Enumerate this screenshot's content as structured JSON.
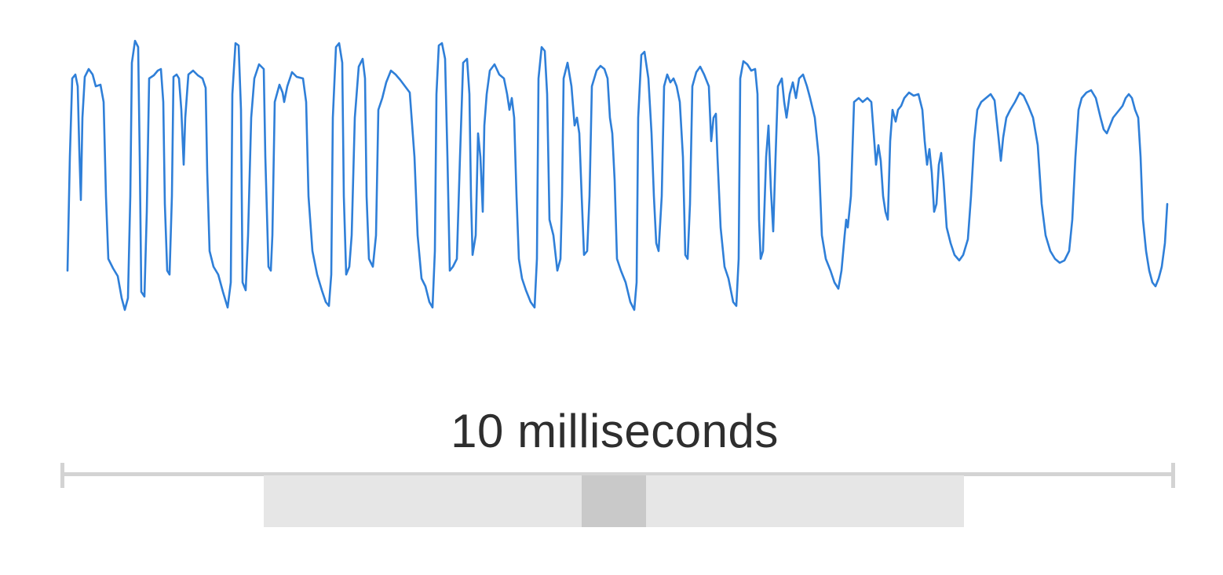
{
  "scale": {
    "label": "10 milliseconds"
  },
  "colors": {
    "waveform": "#2f7fd8",
    "ruler": "#d3d3d3",
    "zoom_track": "#e6e6e6",
    "zoom_handle": "#c9c9c9",
    "label_text": "#2e2e2e"
  }
}
